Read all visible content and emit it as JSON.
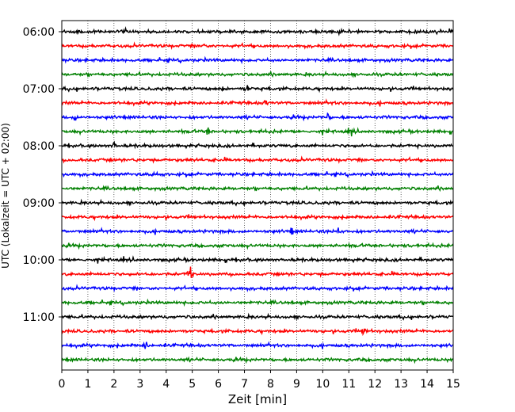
{
  "chart_data": {
    "type": "line",
    "title": "",
    "xlabel": "Zeit  [min]",
    "ylabel": "UTC (Lokalzeit = UTC + 02:00)",
    "xlim": [
      0,
      15
    ],
    "x_ticks": [
      0,
      1,
      2,
      3,
      4,
      5,
      6,
      7,
      8,
      9,
      10,
      11,
      12,
      13,
      14,
      15
    ],
    "y_tick_labels": [
      "06:00",
      "07:00",
      "08:00",
      "09:00",
      "10:00",
      "11:00"
    ],
    "grid": "vertical dotted",
    "trace_interval_min": 15,
    "trace_colors": [
      "#000000",
      "#ff0000",
      "#0000ff",
      "#008000"
    ],
    "traces": [
      {
        "start": "06:00",
        "color": "#000000"
      },
      {
        "start": "06:15",
        "color": "#ff0000"
      },
      {
        "start": "06:30",
        "color": "#0000ff"
      },
      {
        "start": "06:45",
        "color": "#008000"
      },
      {
        "start": "07:00",
        "color": "#000000"
      },
      {
        "start": "07:15",
        "color": "#ff0000"
      },
      {
        "start": "07:30",
        "color": "#0000ff"
      },
      {
        "start": "07:45",
        "color": "#008000"
      },
      {
        "start": "08:00",
        "color": "#000000"
      },
      {
        "start": "08:15",
        "color": "#ff0000"
      },
      {
        "start": "08:30",
        "color": "#0000ff"
      },
      {
        "start": "08:45",
        "color": "#008000"
      },
      {
        "start": "09:00",
        "color": "#000000"
      },
      {
        "start": "09:15",
        "color": "#ff0000"
      },
      {
        "start": "09:30",
        "color": "#0000ff"
      },
      {
        "start": "09:45",
        "color": "#008000"
      },
      {
        "start": "10:00",
        "color": "#000000"
      },
      {
        "start": "10:15",
        "color": "#ff0000"
      },
      {
        "start": "10:30",
        "color": "#0000ff"
      },
      {
        "start": "10:45",
        "color": "#008000"
      },
      {
        "start": "11:00",
        "color": "#000000"
      },
      {
        "start": "11:15",
        "color": "#ff0000"
      },
      {
        "start": "11:30",
        "color": "#0000ff"
      },
      {
        "start": "11:45",
        "color": "#008000"
      }
    ]
  }
}
